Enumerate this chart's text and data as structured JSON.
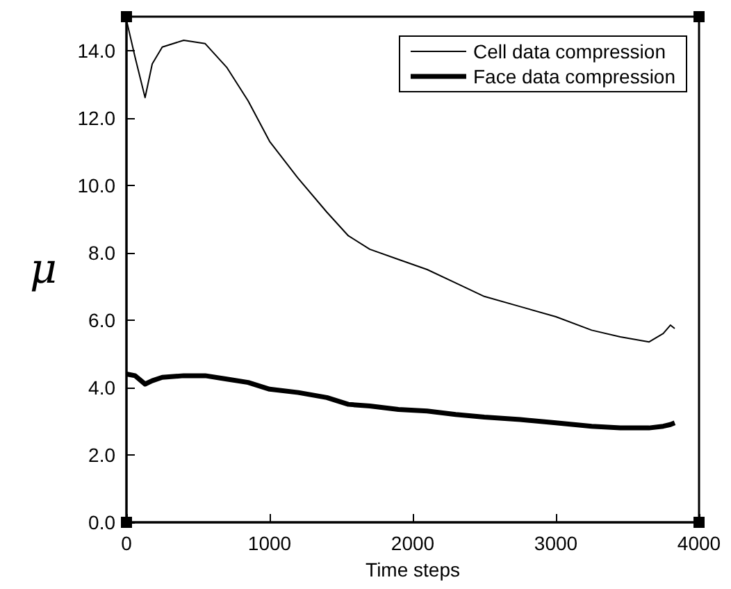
{
  "chart_data": {
    "type": "line",
    "xlabel": "Time steps",
    "ylabel": "μ",
    "xlim": [
      0,
      4000
    ],
    "xticks": [
      0,
      1000,
      2000,
      3000,
      4000
    ],
    "ylim": [
      0,
      15
    ],
    "yticks": [
      {
        "value": 0,
        "label": "0.0"
      },
      {
        "value": 2,
        "label": "2.0"
      },
      {
        "value": 4,
        "label": "4.0"
      },
      {
        "value": 6,
        "label": "6.0"
      },
      {
        "value": 8,
        "label": "8.0"
      },
      {
        "value": 10,
        "label": "10.0"
      },
      {
        "value": 12,
        "label": "12.0"
      },
      {
        "value": 14,
        "label": "14.0"
      }
    ],
    "x": [
      0,
      60,
      130,
      180,
      250,
      400,
      550,
      700,
      850,
      1000,
      1200,
      1400,
      1550,
      1700,
      1900,
      2100,
      2300,
      2500,
      2750,
      3000,
      3250,
      3450,
      3650,
      3750,
      3800,
      3830
    ],
    "series": [
      {
        "name": "Cell data compression",
        "color": "#000000",
        "values": [
          14.9,
          13.8,
          12.6,
          13.6,
          14.1,
          14.3,
          14.2,
          13.5,
          12.5,
          11.3,
          10.2,
          9.2,
          8.5,
          8.1,
          7.8,
          7.5,
          7.1,
          6.7,
          6.4,
          6.1,
          5.7,
          5.5,
          5.35,
          5.6,
          5.85,
          5.75
        ]
      },
      {
        "name": "Face data compression",
        "color": "#000000",
        "values": [
          4.4,
          4.35,
          4.1,
          4.2,
          4.3,
          4.35,
          4.35,
          4.25,
          4.15,
          3.95,
          3.85,
          3.7,
          3.5,
          3.45,
          3.35,
          3.3,
          3.2,
          3.12,
          3.05,
          2.95,
          2.85,
          2.8,
          2.8,
          2.85,
          2.9,
          2.95
        ]
      }
    ],
    "legend": "top right",
    "grid": false,
    "marker": "none",
    "line_style": "solid"
  }
}
